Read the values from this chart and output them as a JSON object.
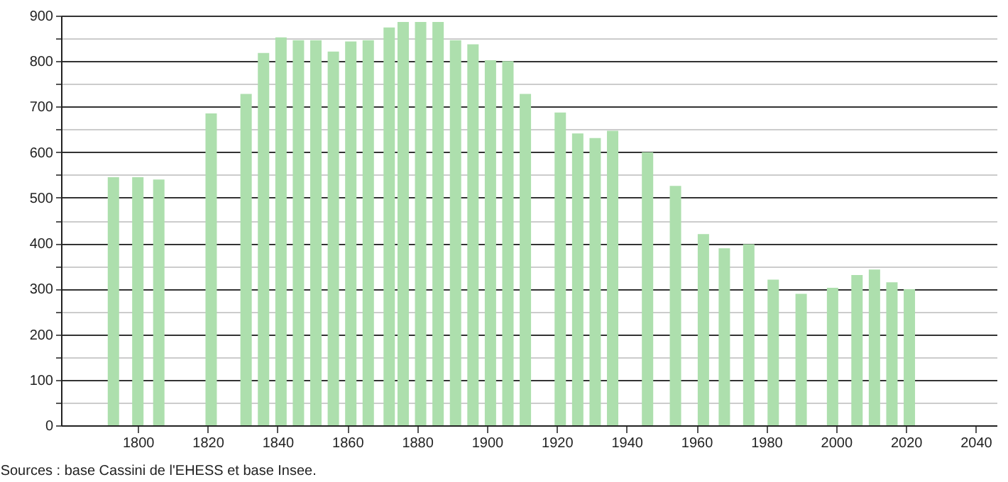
{
  "chart_data": {
    "type": "bar",
    "x": [
      1793,
      1800,
      1806,
      1821,
      1831,
      1836,
      1841,
      1846,
      1851,
      1856,
      1861,
      1866,
      1872,
      1876,
      1881,
      1886,
      1891,
      1896,
      1901,
      1906,
      1911,
      1921,
      1926,
      1931,
      1936,
      1946,
      1954,
      1962,
      1968,
      1975,
      1982,
      1990,
      1999,
      2006,
      2011,
      2016,
      2021
    ],
    "values": [
      545,
      545,
      540,
      685,
      728,
      818,
      852,
      846,
      846,
      821,
      843,
      846,
      874,
      886,
      886,
      886,
      846,
      837,
      802,
      800,
      728,
      687,
      641,
      631,
      647,
      600,
      526,
      420,
      389,
      398,
      320,
      289,
      302,
      330,
      342,
      314,
      299
    ],
    "color": "#addfad",
    "xlim": [
      1778,
      2046
    ],
    "xticks": [
      1800,
      1820,
      1840,
      1860,
      1880,
      1900,
      1920,
      1940,
      1960,
      1980,
      2000,
      2020,
      2040
    ],
    "ylim": [
      0,
      900
    ],
    "yticks": [
      0,
      {
        "value": 50,
        "label": null
      },
      100,
      {
        "value": 150,
        "label": null
      },
      200,
      {
        "value": 250,
        "label": null
      },
      300,
      {
        "value": 350,
        "label": null
      },
      400,
      {
        "value": 450,
        "label": null
      },
      500,
      {
        "value": 550,
        "label": null
      },
      600,
      {
        "value": 650,
        "label": null
      },
      700,
      {
        "value": 750,
        "label": null
      },
      800,
      {
        "value": 850,
        "label": null
      },
      900
    ],
    "grid": "y",
    "annotations": [
      "Sources : base Cassini de l'EHESS et base Insee."
    ]
  }
}
